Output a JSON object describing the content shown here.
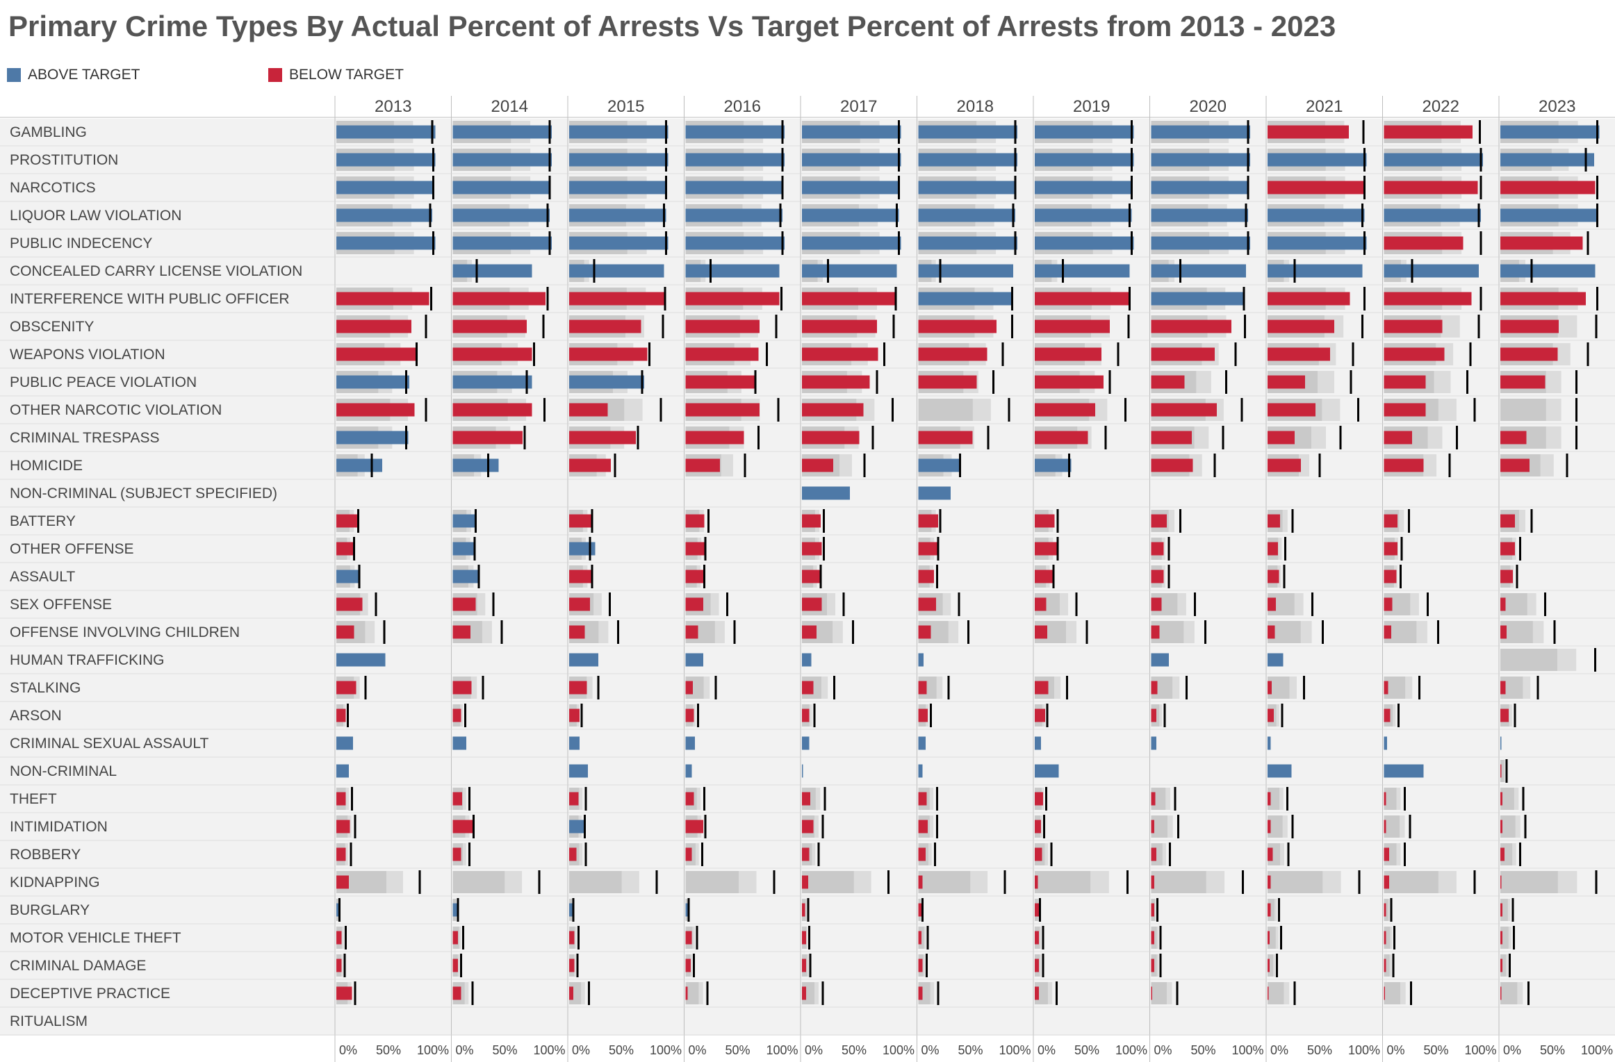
{
  "title": "Primary Crime Types By Actual Percent of Arrests Vs Target Percent of Arrests from 2013 - 2023",
  "colors": {
    "above": "#4e79a7",
    "below": "#c8243a",
    "band_dark": "#c9c9c9",
    "band_light": "#dcdcdc",
    "row_bg": "#f2f2f2",
    "target": "#000000"
  },
  "chart_data": {
    "type": "bar",
    "subtype": "bullet",
    "title": "Primary Crime Types By Actual Percent of Arrests Vs Target Percent of Arrests from 2013 - 2023",
    "legend": {
      "position": "top-left",
      "entries": [
        {
          "label": "ABOVE TARGET",
          "color": "#4e79a7"
        },
        {
          "label": "BELOW TARGET",
          "color": "#c8243a"
        }
      ]
    },
    "years": [
      "2013",
      "2014",
      "2015",
      "2016",
      "2017",
      "2018",
      "2019",
      "2020",
      "2021",
      "2022",
      "2023"
    ],
    "x_ticks": [
      "0%",
      "50%",
      "100%"
    ],
    "xlim": [
      0,
      100
    ],
    "rows": [
      {
        "name": "GAMBLING",
        "actual": [
          95,
          95,
          95,
          95,
          95,
          95,
          95,
          95,
          78,
          85,
          95
        ],
        "target": [
          92,
          93,
          93,
          93,
          93,
          93,
          93,
          93,
          92,
          92,
          93
        ]
      },
      {
        "name": "PROSTITUTION",
        "actual": [
          95,
          95,
          95,
          95,
          95,
          95,
          95,
          95,
          95,
          95,
          90
        ],
        "target": [
          93,
          93,
          93,
          93,
          93,
          93,
          93,
          93,
          93,
          93,
          82
        ]
      },
      {
        "name": "NARCOTICS",
        "actual": [
          94,
          94,
          94,
          94,
          94,
          94,
          94,
          94,
          92,
          90,
          91
        ],
        "target": [
          93,
          93,
          93,
          93,
          93,
          93,
          93,
          93,
          93,
          93,
          93
        ]
      },
      {
        "name": "LIQUOR LAW VIOLATION",
        "actual": [
          92,
          93,
          93,
          93,
          93,
          93,
          93,
          93,
          93,
          93,
          93
        ],
        "target": [
          90,
          91,
          91,
          91,
          91,
          91,
          91,
          91,
          91,
          91,
          93
        ]
      },
      {
        "name": "PUBLIC INDECENCY",
        "actual": [
          95,
          95,
          95,
          95,
          95,
          95,
          95,
          95,
          95,
          76,
          79
        ],
        "target": [
          93,
          93,
          93,
          93,
          93,
          93,
          93,
          93,
          93,
          93,
          84
        ]
      },
      {
        "name": "CONCEALED CARRY LICENSE VIOLATION",
        "actual": [
          null,
          76,
          91,
          90,
          91,
          91,
          91,
          91,
          91,
          91,
          91
        ],
        "target": [
          null,
          23,
          24,
          24,
          25,
          21,
          27,
          28,
          26,
          27,
          30
        ]
      },
      {
        "name": "INTERFERENCE WITH PUBLIC OFFICER",
        "actual": [
          89,
          89,
          91,
          90,
          89,
          90,
          90,
          89,
          79,
          84,
          82
        ],
        "target": [
          91,
          91,
          92,
          92,
          90,
          90,
          91,
          89,
          93,
          93,
          93
        ]
      },
      {
        "name": "OBSCENITY",
        "actual": [
          72,
          71,
          69,
          71,
          72,
          75,
          72,
          77,
          64,
          56,
          56
        ],
        "target": [
          86,
          87,
          90,
          87,
          88,
          90,
          90,
          90,
          91,
          91,
          92
        ]
      },
      {
        "name": "WEAPONS VIOLATION",
        "actual": [
          76,
          76,
          75,
          70,
          73,
          66,
          64,
          61,
          60,
          58,
          55
        ],
        "target": [
          77,
          78,
          77,
          78,
          79,
          81,
          80,
          81,
          82,
          83,
          84
        ]
      },
      {
        "name": "PUBLIC PEACE VIOLATION",
        "actual": [
          70,
          76,
          72,
          66,
          65,
          56,
          66,
          32,
          36,
          40,
          43
        ],
        "target": [
          67,
          71,
          70,
          67,
          72,
          72,
          72,
          72,
          80,
          80,
          73
        ]
      },
      {
        "name": "OTHER NARCOTIC VIOLATION",
        "actual": [
          75,
          76,
          37,
          71,
          59,
          null,
          58,
          63,
          46,
          40,
          null
        ],
        "target": [
          86,
          88,
          88,
          89,
          87,
          87,
          87,
          87,
          87,
          87,
          73
        ]
      },
      {
        "name": "CRIMINAL TRESPASS",
        "actual": [
          69,
          67,
          64,
          56,
          55,
          52,
          51,
          39,
          26,
          27,
          25
        ],
        "target": [
          67,
          69,
          66,
          70,
          68,
          67,
          68,
          69,
          70,
          70,
          73
        ]
      },
      {
        "name": "HOMICIDE",
        "actual": [
          44,
          44,
          40,
          33,
          30,
          40,
          35,
          40,
          32,
          38,
          28
        ],
        "target": [
          34,
          34,
          44,
          57,
          60,
          40,
          33,
          61,
          50,
          63,
          64
        ]
      },
      {
        "name": "NON-CRIMINAL (SUBJECT SPECIFIED)",
        "actual": [
          null,
          null,
          null,
          null,
          46,
          31,
          null,
          null,
          null,
          null,
          null
        ],
        "target": [
          null,
          null,
          null,
          null,
          null,
          null,
          null,
          null,
          null,
          null,
          null
        ]
      },
      {
        "name": "BATTERY",
        "actual": [
          20,
          22,
          21,
          18,
          18,
          19,
          19,
          15,
          12,
          13,
          14
        ],
        "target": [
          21,
          22,
          22,
          22,
          21,
          21,
          22,
          28,
          24,
          24,
          30
        ]
      },
      {
        "name": "OTHER OFFENSE",
        "actual": [
          16,
          21,
          25,
          18,
          19,
          18,
          21,
          12,
          10,
          13,
          14
        ],
        "target": [
          17,
          21,
          20,
          19,
          21,
          19,
          22,
          17,
          17,
          17,
          19
        ]
      },
      {
        "name": "ASSAULT",
        "actual": [
          22,
          25,
          21,
          17,
          17,
          15,
          17,
          12,
          11,
          12,
          12
        ],
        "target": [
          22,
          25,
          22,
          18,
          18,
          18,
          18,
          17,
          16,
          16,
          16
        ]
      },
      {
        "name": "SEX OFFENSE",
        "actual": [
          25,
          22,
          20,
          17,
          19,
          17,
          11,
          10,
          8,
          8,
          5
        ],
        "target": [
          38,
          39,
          39,
          40,
          40,
          39,
          40,
          42,
          43,
          42,
          43
        ]
      },
      {
        "name": "OFFENSE INVOLVING CHILDREN",
        "actual": [
          17,
          17,
          15,
          12,
          14,
          12,
          12,
          8,
          7,
          7,
          6
        ],
        "target": [
          46,
          47,
          47,
          47,
          49,
          48,
          50,
          52,
          53,
          52,
          52
        ]
      },
      {
        "name": "HUMAN TRAFFICKING",
        "actual": [
          47,
          null,
          28,
          17,
          9,
          5,
          null,
          17,
          15,
          null,
          null
        ],
        "target": [
          null,
          null,
          null,
          null,
          null,
          null,
          null,
          null,
          null,
          null,
          91
        ]
      },
      {
        "name": "STALKING",
        "actual": [
          19,
          18,
          17,
          7,
          11,
          8,
          13,
          6,
          4,
          4,
          5
        ],
        "target": [
          28,
          29,
          28,
          29,
          31,
          29,
          31,
          34,
          35,
          34,
          36
        ]
      },
      {
        "name": "ARSON",
        "actual": [
          9,
          8,
          10,
          8,
          7,
          9,
          10,
          5,
          6,
          6,
          8
        ],
        "target": [
          11,
          12,
          12,
          12,
          12,
          12,
          12,
          13,
          14,
          14,
          14
        ]
      },
      {
        "name": "CRIMINAL SEXUAL ASSAULT",
        "actual": [
          16,
          13,
          10,
          9,
          7,
          7,
          6,
          5,
          3,
          3,
          1
        ],
        "target": [
          null,
          null,
          null,
          null,
          null,
          null,
          null,
          null,
          null,
          null,
          null
        ]
      },
      {
        "name": "NON-CRIMINAL",
        "actual": [
          12,
          null,
          18,
          6,
          1,
          4,
          23,
          null,
          23,
          38,
          1
        ],
        "target": [
          null,
          null,
          null,
          null,
          null,
          null,
          null,
          null,
          null,
          null,
          6
        ]
      },
      {
        "name": "THEFT",
        "actual": [
          9,
          9,
          9,
          8,
          8,
          8,
          8,
          4,
          3,
          2,
          2
        ],
        "target": [
          15,
          16,
          16,
          18,
          22,
          18,
          11,
          23,
          19,
          20,
          22
        ]
      },
      {
        "name": "INTIMIDATION",
        "actual": [
          13,
          19,
          15,
          17,
          11,
          9,
          6,
          3,
          3,
          2,
          2
        ],
        "target": [
          18,
          20,
          15,
          19,
          20,
          18,
          9,
          26,
          24,
          25,
          24
        ]
      },
      {
        "name": "ROBBERY",
        "actual": [
          9,
          8,
          7,
          6,
          7,
          7,
          7,
          5,
          5,
          5,
          4
        ],
        "target": [
          14,
          16,
          16,
          16,
          16,
          16,
          16,
          18,
          20,
          20,
          19
        ]
      },
      {
        "name": "KIDNAPPING",
        "actual": [
          12,
          null,
          null,
          null,
          6,
          4,
          3,
          3,
          3,
          5,
          1
        ],
        "target": [
          80,
          83,
          84,
          85,
          83,
          83,
          89,
          88,
          88,
          87,
          92
        ]
      },
      {
        "name": "BURGLARY",
        "actual": [
          4,
          5,
          4,
          3,
          3,
          3,
          4,
          3,
          3,
          2,
          2
        ],
        "target": [
          3,
          5,
          4,
          3,
          6,
          4,
          5,
          6,
          11,
          7,
          12
        ]
      },
      {
        "name": "MOTOR VEHICLE THEFT",
        "actual": [
          5,
          5,
          5,
          6,
          4,
          3,
          4,
          3,
          2,
          2,
          2
        ],
        "target": [
          9,
          10,
          9,
          11,
          7,
          9,
          8,
          9,
          13,
          10,
          13
        ]
      },
      {
        "name": "CRIMINAL DAMAGE",
        "actual": [
          5,
          5,
          5,
          5,
          4,
          4,
          4,
          3,
          2,
          2,
          2
        ],
        "target": [
          8,
          8,
          8,
          8,
          8,
          8,
          8,
          9,
          9,
          9,
          9
        ]
      },
      {
        "name": "DECEPTIVE PRACTICE",
        "actual": [
          15,
          8,
          4,
          2,
          4,
          4,
          4,
          1,
          1,
          1,
          1
        ],
        "target": [
          18,
          19,
          19,
          21,
          20,
          19,
          21,
          25,
          26,
          26,
          27
        ]
      },
      {
        "name": "RITUALISM",
        "actual": [
          null,
          null,
          null,
          null,
          null,
          null,
          null,
          null,
          null,
          null,
          null
        ],
        "target": [
          null,
          null,
          null,
          null,
          null,
          null,
          null,
          null,
          null,
          null,
          null
        ]
      }
    ]
  }
}
